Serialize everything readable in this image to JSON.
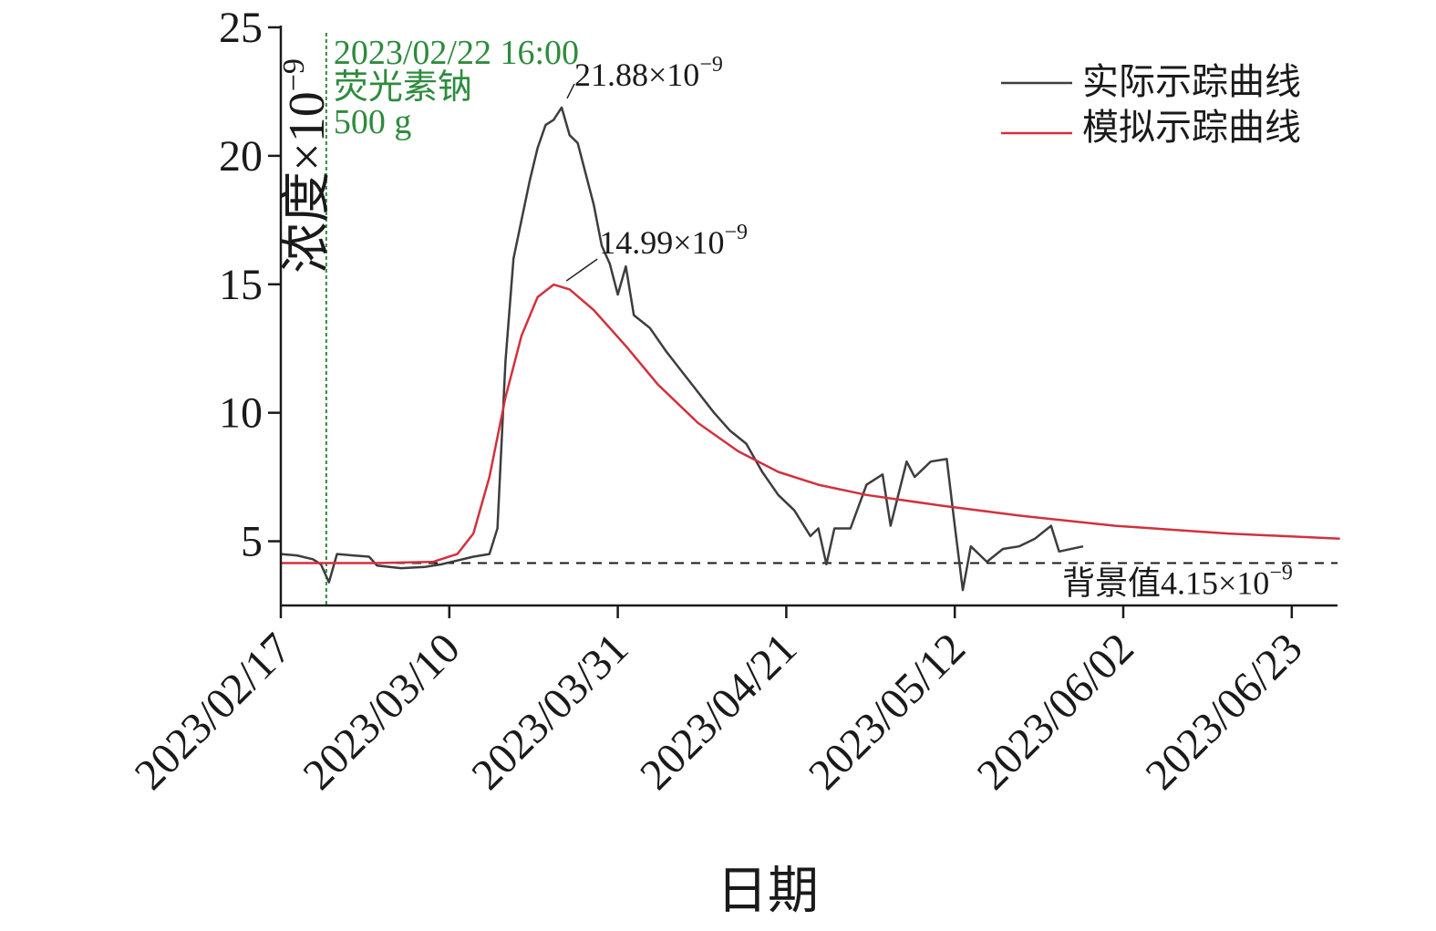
{
  "chart_data": {
    "type": "line",
    "xlabel": "日期",
    "ylabel": "浓度×10",
    "ylabel_exponent": "−9",
    "x_ticks": [
      "2023/02/17",
      "2023/03/10",
      "2023/03/31",
      "2023/04/21",
      "2023/05/12",
      "2023/06/02",
      "2023/06/23"
    ],
    "x_range": [
      "2023/02/17",
      "2023/06/29"
    ],
    "y_ticks": [
      5,
      10,
      15,
      20,
      25
    ],
    "ylim": [
      2.5,
      25
    ],
    "legend_position": "top-right",
    "colors": {
      "actual": "#3d3d3d",
      "simulated": "#d1313d",
      "injection": "#2e8b3e",
      "axis": "#1a1a1a"
    },
    "injection": {
      "date": "2023/02/22 16:00",
      "line1": "2023/02/22 16:00",
      "line2": "荧光素钠",
      "line3": "500 g"
    },
    "background": {
      "value": 4.15,
      "label": "背景值4.15×10",
      "label_exponent": "−9"
    },
    "annotations": [
      {
        "text": "21.88×10",
        "exponent": "−9",
        "x": "2023/03/24",
        "y": 21.88
      },
      {
        "text": "14.99×10",
        "exponent": "−9",
        "x": "2023/03/23",
        "y": 14.99
      }
    ],
    "series": [
      {
        "name": "实际示踪曲线",
        "color": "#3d3d3d",
        "points": [
          [
            "2023/02/17",
            4.5
          ],
          [
            "2023/02/19",
            4.45
          ],
          [
            "2023/02/21",
            4.3
          ],
          [
            "2023/02/22",
            4.1
          ],
          [
            "2023/02/23",
            3.4
          ],
          [
            "2023/02/24",
            4.5
          ],
          [
            "2023/02/26",
            4.45
          ],
          [
            "2023/02/28",
            4.4
          ],
          [
            "2023/03/01",
            4.05
          ],
          [
            "2023/03/04",
            3.95
          ],
          [
            "2023/03/07",
            4.0
          ],
          [
            "2023/03/09",
            4.1
          ],
          [
            "2023/03/11",
            4.25
          ],
          [
            "2023/03/13",
            4.4
          ],
          [
            "2023/03/15",
            4.5
          ],
          [
            "2023/03/16",
            5.5
          ],
          [
            "2023/03/17",
            12.0
          ],
          [
            "2023/03/18",
            16.0
          ],
          [
            "2023/03/19",
            17.5
          ],
          [
            "2023/03/20",
            19.0
          ],
          [
            "2023/03/21",
            20.3
          ],
          [
            "2023/03/22",
            21.2
          ],
          [
            "2023/03/23",
            21.4
          ],
          [
            "2023/03/24",
            21.88
          ],
          [
            "2023/03/25",
            20.8
          ],
          [
            "2023/03/26",
            20.5
          ],
          [
            "2023/03/27",
            19.3
          ],
          [
            "2023/03/28",
            18.1
          ],
          [
            "2023/03/29",
            16.5
          ],
          [
            "2023/03/30",
            15.8
          ],
          [
            "2023/03/31",
            14.6
          ],
          [
            "2023/04/01",
            15.7
          ],
          [
            "2023/04/02",
            13.8
          ],
          [
            "2023/04/04",
            13.3
          ],
          [
            "2023/04/06",
            12.4
          ],
          [
            "2023/04/08",
            11.6
          ],
          [
            "2023/04/10",
            10.8
          ],
          [
            "2023/04/12",
            10.0
          ],
          [
            "2023/04/14",
            9.3
          ],
          [
            "2023/04/16",
            8.8
          ],
          [
            "2023/04/18",
            7.7
          ],
          [
            "2023/04/20",
            6.8
          ],
          [
            "2023/04/22",
            6.2
          ],
          [
            "2023/04/24",
            5.2
          ],
          [
            "2023/04/25",
            5.5
          ],
          [
            "2023/04/26",
            4.1
          ],
          [
            "2023/04/27",
            5.5
          ],
          [
            "2023/04/29",
            5.5
          ],
          [
            "2023/05/01",
            7.2
          ],
          [
            "2023/05/03",
            7.6
          ],
          [
            "2023/05/04",
            5.6
          ],
          [
            "2023/05/06",
            8.1
          ],
          [
            "2023/05/07",
            7.5
          ],
          [
            "2023/05/09",
            8.1
          ],
          [
            "2023/05/11",
            8.2
          ],
          [
            "2023/05/12",
            5.6
          ],
          [
            "2023/05/13",
            3.1
          ],
          [
            "2023/05/14",
            4.8
          ],
          [
            "2023/05/16",
            4.2
          ],
          [
            "2023/05/18",
            4.7
          ],
          [
            "2023/05/20",
            4.8
          ],
          [
            "2023/05/22",
            5.1
          ],
          [
            "2023/05/24",
            5.6
          ],
          [
            "2023/05/25",
            4.6
          ],
          [
            "2023/05/28",
            4.8
          ]
        ]
      },
      {
        "name": "模拟示踪曲线",
        "color": "#d1313d",
        "points": [
          [
            "2023/02/17",
            4.15
          ],
          [
            "2023/03/01",
            4.15
          ],
          [
            "2023/03/08",
            4.2
          ],
          [
            "2023/03/11",
            4.5
          ],
          [
            "2023/03/13",
            5.3
          ],
          [
            "2023/03/15",
            7.5
          ],
          [
            "2023/03/17",
            10.6
          ],
          [
            "2023/03/19",
            13.0
          ],
          [
            "2023/03/21",
            14.5
          ],
          [
            "2023/03/23",
            14.99
          ],
          [
            "2023/03/25",
            14.8
          ],
          [
            "2023/03/28",
            14.0
          ],
          [
            "2023/04/01",
            12.6
          ],
          [
            "2023/04/05",
            11.1
          ],
          [
            "2023/04/10",
            9.6
          ],
          [
            "2023/04/15",
            8.5
          ],
          [
            "2023/04/20",
            7.7
          ],
          [
            "2023/04/25",
            7.2
          ],
          [
            "2023/05/01",
            6.8
          ],
          [
            "2023/05/10",
            6.4
          ],
          [
            "2023/05/20",
            6.0
          ],
          [
            "2023/06/01",
            5.6
          ],
          [
            "2023/06/15",
            5.3
          ],
          [
            "2023/06/29",
            5.1
          ]
        ]
      }
    ]
  }
}
